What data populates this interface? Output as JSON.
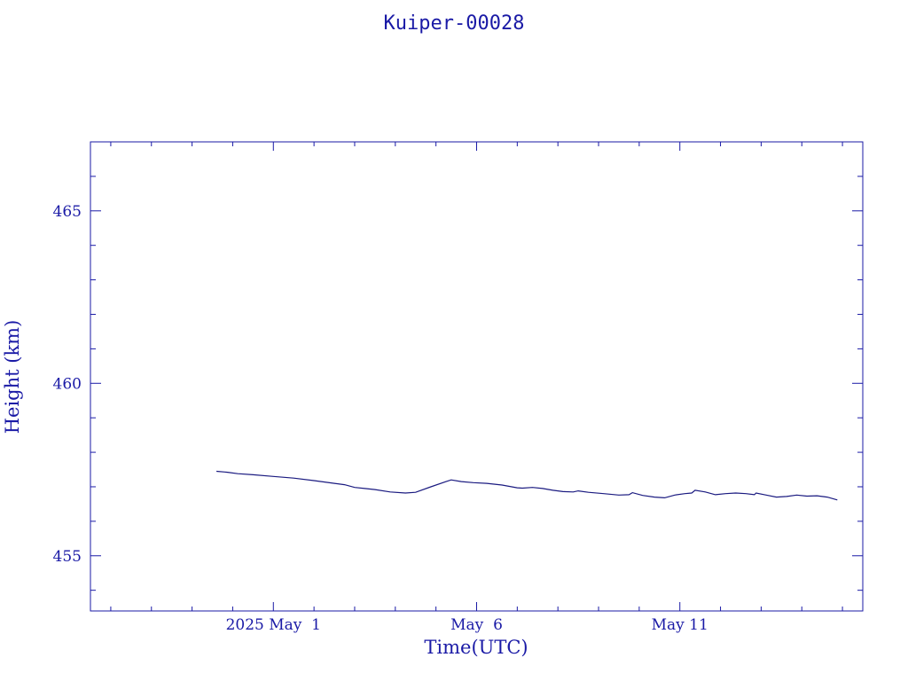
{
  "chart_data": {
    "type": "line",
    "title": "Kuiper-00028",
    "xlabel": "Time(UTC)",
    "ylabel": "Height (km)",
    "xlim": [
      "2025-04-26T12:00",
      "2025-05-15T12:00"
    ],
    "ylim": [
      453.4,
      467.0
    ],
    "x_tick_labels": [
      {
        "at": "2025-05-01",
        "label": "2025 May  1"
      },
      {
        "at": "2025-05-06",
        "label": "May  6"
      },
      {
        "at": "2025-05-11",
        "label": "May 11"
      }
    ],
    "y_ticks": [
      455,
      460,
      465
    ],
    "grid": false,
    "series": [
      {
        "color": "#1a1a80",
        "points": [
          [
            "2025-04-29T14:24",
            457.45
          ],
          [
            "2025-04-29T21:00",
            457.42
          ],
          [
            "2025-04-30T03:00",
            457.38
          ],
          [
            "2025-04-30T12:00",
            457.35
          ],
          [
            "2025-05-01T00:00",
            457.3
          ],
          [
            "2025-05-01T12:00",
            457.25
          ],
          [
            "2025-05-02T00:00",
            457.18
          ],
          [
            "2025-05-02T12:00",
            457.1
          ],
          [
            "2025-05-02T18:00",
            457.06
          ],
          [
            "2025-05-03T00:00",
            456.98
          ],
          [
            "2025-05-03T06:00",
            456.95
          ],
          [
            "2025-05-03T12:00",
            456.92
          ],
          [
            "2025-05-03T21:00",
            456.85
          ],
          [
            "2025-05-04T06:00",
            456.82
          ],
          [
            "2025-05-04T12:00",
            456.84
          ],
          [
            "2025-05-04T21:00",
            457.0
          ],
          [
            "2025-05-05T06:00",
            457.15
          ],
          [
            "2025-05-05T09:00",
            457.2
          ],
          [
            "2025-05-05T15:00",
            457.15
          ],
          [
            "2025-05-05T22:00",
            457.12
          ],
          [
            "2025-05-06T06:00",
            457.1
          ],
          [
            "2025-05-06T15:00",
            457.05
          ],
          [
            "2025-05-07T00:00",
            456.97
          ],
          [
            "2025-05-07T03:00",
            456.96
          ],
          [
            "2025-05-07T09:00",
            456.98
          ],
          [
            "2025-05-07T15:00",
            456.95
          ],
          [
            "2025-05-07T21:00",
            456.9
          ],
          [
            "2025-05-08T03:00",
            456.86
          ],
          [
            "2025-05-08T09:00",
            456.85
          ],
          [
            "2025-05-08T12:00",
            456.88
          ],
          [
            "2025-05-08T18:00",
            456.84
          ],
          [
            "2025-05-09T03:00",
            456.8
          ],
          [
            "2025-05-09T12:00",
            456.76
          ],
          [
            "2025-05-09T18:00",
            456.77
          ],
          [
            "2025-05-09T20:00",
            456.83
          ],
          [
            "2025-05-10T02:00",
            456.75
          ],
          [
            "2025-05-10T09:00",
            456.7
          ],
          [
            "2025-05-10T15:00",
            456.68
          ],
          [
            "2025-05-10T21:00",
            456.76
          ],
          [
            "2025-05-11T03:00",
            456.8
          ],
          [
            "2025-05-11T07:00",
            456.82
          ],
          [
            "2025-05-11T09:00",
            456.9
          ],
          [
            "2025-05-11T15:00",
            456.85
          ],
          [
            "2025-05-11T21:00",
            456.77
          ],
          [
            "2025-05-12T03:00",
            456.8
          ],
          [
            "2025-05-12T09:00",
            456.82
          ],
          [
            "2025-05-12T15:00",
            456.8
          ],
          [
            "2025-05-12T20:00",
            456.77
          ],
          [
            "2025-05-12T21:00",
            456.82
          ],
          [
            "2025-05-13T03:00",
            456.76
          ],
          [
            "2025-05-13T09:00",
            456.7
          ],
          [
            "2025-05-13T15:00",
            456.72
          ],
          [
            "2025-05-13T21:00",
            456.76
          ],
          [
            "2025-05-14T03:00",
            456.73
          ],
          [
            "2025-05-14T09:00",
            456.74
          ],
          [
            "2025-05-14T15:00",
            456.7
          ],
          [
            "2025-05-14T21:00",
            456.62
          ]
        ]
      }
    ]
  }
}
